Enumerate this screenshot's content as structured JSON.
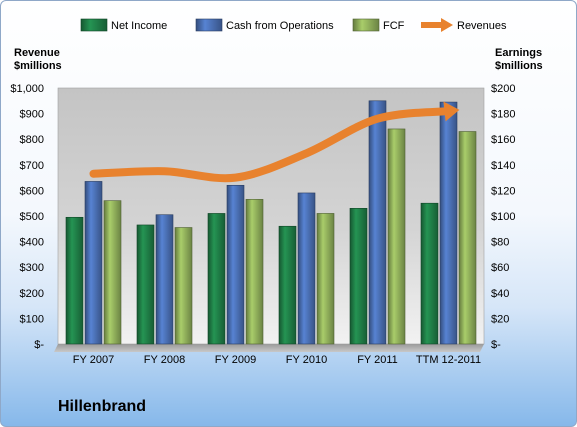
{
  "chart_data": {
    "type": "bar",
    "categories": [
      "FY 2007",
      "FY 2008",
      "FY 2009",
      "FY 2010",
      "FY 2011",
      "TTM 12-2011"
    ],
    "series": [
      {
        "name": "Net Income",
        "axis": "right",
        "color": "#1f7d46",
        "values": [
          99,
          93,
          102,
          92,
          106,
          110
        ]
      },
      {
        "name": "Cash from Operations",
        "axis": "right",
        "color": "#4a6fb3",
        "values": [
          127,
          101,
          124,
          118,
          190,
          189
        ]
      },
      {
        "name": "FCF",
        "axis": "right",
        "color": "#8fae5a",
        "values": [
          112,
          91,
          113,
          102,
          168,
          166
        ]
      },
      {
        "name": "Revenues",
        "axis": "left",
        "type": "line",
        "color": "#e8822e",
        "values": [
          665,
          675,
          650,
          745,
          880,
          910
        ]
      }
    ],
    "left_axis": {
      "label": [
        "Revenue",
        "$millions"
      ],
      "ylim": [
        0,
        1000
      ],
      "ticks": [
        "$-",
        "$100",
        "$200",
        "$300",
        "$400",
        "$500",
        "$600",
        "$700",
        "$800",
        "$900",
        "$1,000"
      ]
    },
    "right_axis": {
      "label": [
        "Earnings",
        "$millions"
      ],
      "ylim": [
        0,
        200
      ],
      "ticks": [
        "$-",
        "$20",
        "$40",
        "$60",
        "$80",
        "$100",
        "$120",
        "$140",
        "$160",
        "$180",
        "$200"
      ]
    },
    "legend": "top",
    "grid": false,
    "title": ""
  },
  "company": "Hillenbrand"
}
